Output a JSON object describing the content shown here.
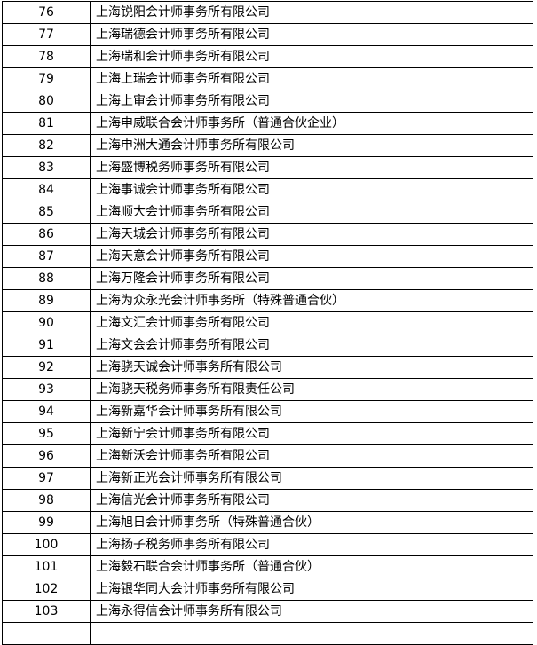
{
  "rows": [
    {
      "no": "76",
      "name": "上海锐阳会计师事务所有限公司"
    },
    {
      "no": "77",
      "name": "上海瑞德会计师事务所有限公司"
    },
    {
      "no": "78",
      "name": "上海瑞和会计师事务所有限公司"
    },
    {
      "no": "79",
      "name": "上海上瑞会计师事务所有限公司"
    },
    {
      "no": "80",
      "name": "上海上审会计师事务所有限公司"
    },
    {
      "no": "81",
      "name": "上海申威联合会计师事务所（普通合伙企业）"
    },
    {
      "no": "82",
      "name": "上海申洲大通会计师事务所有限公司"
    },
    {
      "no": "83",
      "name": "上海盛博税务师事务所有限公司"
    },
    {
      "no": "84",
      "name": "上海事诚会计师事务所有限公司"
    },
    {
      "no": "85",
      "name": "上海顺大会计师事务所有限公司"
    },
    {
      "no": "86",
      "name": "上海天城会计师事务所有限公司"
    },
    {
      "no": "87",
      "name": "上海天意会计师事务所有限公司"
    },
    {
      "no": "88",
      "name": "上海万隆会计师事务所有限公司"
    },
    {
      "no": "89",
      "name": "上海为众永光会计师事务所（特殊普通合伙）"
    },
    {
      "no": "90",
      "name": "上海文汇会计师事务所有限公司"
    },
    {
      "no": "91",
      "name": "上海文会会计师事务所有限公司"
    },
    {
      "no": "92",
      "name": "上海骁天诚会计师事务所有限公司"
    },
    {
      "no": "93",
      "name": "上海骁天税务师事务所有限责任公司"
    },
    {
      "no": "94",
      "name": "上海新嘉华会计师事务所有限公司"
    },
    {
      "no": "95",
      "name": "上海新宁会计师事务所有限公司"
    },
    {
      "no": "96",
      "name": "上海新沃会计师事务所有限公司"
    },
    {
      "no": "97",
      "name": "上海新正光会计师事务所有限公司"
    },
    {
      "no": "98",
      "name": "上海信光会计师事务所有限公司"
    },
    {
      "no": "99",
      "name": "上海旭日会计师事务所（特殊普通合伙）"
    },
    {
      "no": "100",
      "name": "上海扬子税务师事务所有限公司"
    },
    {
      "no": "101",
      "name": "上海毅石联合会计师事务所（普通合伙）"
    },
    {
      "no": "102",
      "name": "上海银华同大会计师事务所有限公司"
    },
    {
      "no": "103",
      "name": "上海永得信会计师事务所有限公司"
    }
  ]
}
